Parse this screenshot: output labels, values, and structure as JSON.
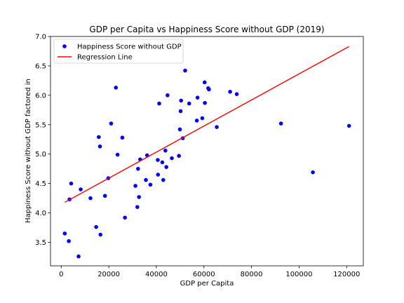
{
  "chart_data": {
    "type": "scatter",
    "title": "GDP per Capita vs Happiness Score without GDP (2019)",
    "xlabel": "GDP per Capita",
    "ylabel": "Happiness Score without GDP factored in",
    "xlim": [
      -4500,
      127000
    ],
    "ylim": [
      3.1,
      7.0
    ],
    "xticks": [
      0,
      20000,
      40000,
      60000,
      80000,
      100000,
      120000
    ],
    "xtick_labels": [
      "0",
      "20000",
      "40000",
      "60000",
      "80000",
      "100000",
      "120000"
    ],
    "yticks": [
      3.5,
      4.0,
      4.5,
      5.0,
      5.5,
      6.0,
      6.5,
      7.0
    ],
    "ytick_labels": [
      "3.5",
      "4.0",
      "4.5",
      "5.0",
      "5.5",
      "6.0",
      "6.5",
      "7.0"
    ],
    "grid": false,
    "legend_position": "top-left",
    "series": [
      {
        "name": "Happiness Score without GDP",
        "kind": "scatter",
        "color": "#0000ff",
        "points": [
          [
            1500,
            3.65
          ],
          [
            3200,
            3.52
          ],
          [
            3500,
            4.23
          ],
          [
            4200,
            4.5
          ],
          [
            7300,
            3.26
          ],
          [
            8200,
            4.4
          ],
          [
            12300,
            4.25
          ],
          [
            14700,
            3.76
          ],
          [
            15800,
            5.29
          ],
          [
            16300,
            5.13
          ],
          [
            16500,
            3.63
          ],
          [
            18400,
            4.29
          ],
          [
            19800,
            4.59
          ],
          [
            21000,
            5.52
          ],
          [
            23000,
            6.13
          ],
          [
            23700,
            4.99
          ],
          [
            25700,
            5.28
          ],
          [
            26800,
            3.92
          ],
          [
            31200,
            4.46
          ],
          [
            32000,
            4.1
          ],
          [
            32300,
            4.75
          ],
          [
            32700,
            4.27
          ],
          [
            33200,
            4.91
          ],
          [
            35600,
            4.56
          ],
          [
            36100,
            4.98
          ],
          [
            37500,
            4.48
          ],
          [
            40600,
            4.9
          ],
          [
            40700,
            4.65
          ],
          [
            41200,
            5.86
          ],
          [
            42500,
            4.86
          ],
          [
            42900,
            4.56
          ],
          [
            43800,
            5.06
          ],
          [
            44200,
            4.78
          ],
          [
            44700,
            6.0
          ],
          [
            46500,
            4.93
          ],
          [
            49500,
            4.97
          ],
          [
            49900,
            5.42
          ],
          [
            50200,
            5.73
          ],
          [
            50400,
            5.91
          ],
          [
            51100,
            5.27
          ],
          [
            52100,
            6.42
          ],
          [
            53800,
            5.86
          ],
          [
            57000,
            5.57
          ],
          [
            57300,
            5.96
          ],
          [
            59300,
            5.61
          ],
          [
            60300,
            6.22
          ],
          [
            60400,
            5.87
          ],
          [
            61800,
            6.12
          ],
          [
            62100,
            6.1
          ],
          [
            65400,
            5.46
          ],
          [
            71000,
            6.06
          ],
          [
            73800,
            6.02
          ],
          [
            92400,
            5.52
          ],
          [
            105800,
            4.69
          ],
          [
            121000,
            5.48
          ]
        ]
      },
      {
        "name": "Regression Line",
        "kind": "line",
        "color": "#ff0000",
        "points": [
          [
            1500,
            4.18
          ],
          [
            121000,
            6.83
          ]
        ]
      }
    ]
  }
}
